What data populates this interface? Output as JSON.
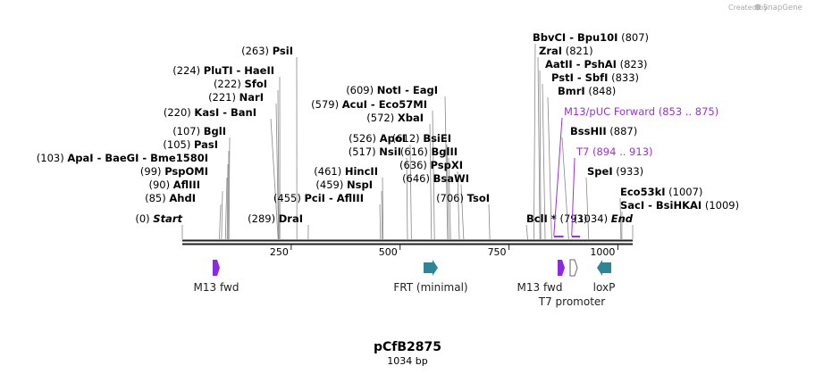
{
  "watermark": {
    "text": "Created by",
    "brand": "SnapGene"
  },
  "plasmid": {
    "name": "pCfB2875",
    "length_label": "1034 bp",
    "length_bp": 1034
  },
  "ruler": {
    "ticks": [
      250,
      500,
      750,
      1000
    ]
  },
  "colors": {
    "enzyme_text": "#000000",
    "site_text": "#9b30d9",
    "primer_purple": "#8a2be2",
    "feature_teal": "#2e8595",
    "backbone": "#222222"
  },
  "enzymes": [
    {
      "pos": "(0)",
      "bp": 0,
      "name": "Start",
      "italic": true
    },
    {
      "pos": "(85)",
      "bp": 85,
      "name": "AhdI"
    },
    {
      "pos": "(90)",
      "bp": 90,
      "name": "AflIII"
    },
    {
      "pos": "(99)",
      "bp": 99,
      "name": "PspOMI"
    },
    {
      "pos": "(103)",
      "bp": 103,
      "name": "ApaI",
      "name2": "BaeGI",
      "name3": "Bme1580I"
    },
    {
      "pos": "(105)",
      "bp": 105,
      "name": "PasI"
    },
    {
      "pos": "(107)",
      "bp": 107,
      "name": "BglI"
    },
    {
      "pos": "(220)",
      "bp": 220,
      "name": "KasI",
      "name2": "BanI"
    },
    {
      "pos": "(221)",
      "bp": 221,
      "name": "NarI"
    },
    {
      "pos": "(222)",
      "bp": 222,
      "name": "SfoI"
    },
    {
      "pos": "(224)",
      "bp": 224,
      "name": "PluTI",
      "name2": "HaeII"
    },
    {
      "pos": "(263)",
      "bp": 263,
      "name": "PsiI"
    },
    {
      "pos": "(289)",
      "bp": 289,
      "name": "DraI"
    },
    {
      "pos": "(455)",
      "bp": 455,
      "name": "PciI",
      "name2": "AflIII"
    },
    {
      "pos": "(459)",
      "bp": 459,
      "name": "NspI"
    },
    {
      "pos": "(461)",
      "bp": 461,
      "name": "HincII"
    },
    {
      "pos": "(517)",
      "bp": 517,
      "name": "NsiI"
    },
    {
      "pos": "(526)",
      "bp": 526,
      "name": "ApoI"
    },
    {
      "pos": "(572)",
      "bp": 572,
      "name": "XbaI"
    },
    {
      "pos": "(579)",
      "bp": 579,
      "name": "AcuI",
      "name2": "Eco57MI"
    },
    {
      "pos": "(609)",
      "bp": 609,
      "name": "NotI",
      "name2": "EagI"
    },
    {
      "pos": "(612)",
      "bp": 612,
      "name": "BsiEI"
    },
    {
      "pos": "(616)",
      "bp": 616,
      "name": "BglII"
    },
    {
      "pos": "(636)",
      "bp": 636,
      "name": "PspXI"
    },
    {
      "pos": "(646)",
      "bp": 646,
      "name": "BsaWI"
    },
    {
      "pos": "(706)",
      "bp": 706,
      "name": "TsoI"
    },
    {
      "pos": "(793)",
      "bp": 793,
      "name": "BclI",
      "marker": "*"
    },
    {
      "pos": "(807)",
      "bp": 807,
      "name": "BbvCI",
      "name2": "Bpu10I"
    },
    {
      "pos": "(821)",
      "bp": 821,
      "name": "ZraI"
    },
    {
      "pos": "(823)",
      "bp": 823,
      "name": "AatII",
      "name2": "PshAI"
    },
    {
      "pos": "(833)",
      "bp": 833,
      "name": "PstI",
      "name2": "SbfI"
    },
    {
      "pos": "(848)",
      "bp": 848,
      "name": "BmrI"
    },
    {
      "pos": "(887)",
      "bp": 887,
      "name": "BssHII"
    },
    {
      "pos": "(933)",
      "bp": 933,
      "name": "SpeI"
    },
    {
      "pos": "(1007)",
      "bp": 1007,
      "name": "Eco53kI"
    },
    {
      "pos": "(1009)",
      "bp": 1009,
      "name": "SacI",
      "name2": "BsiHKAI"
    },
    {
      "pos": "(1034)",
      "bp": 1034,
      "name": "End",
      "italic": true
    }
  ],
  "sites": [
    {
      "name": "M13/pUC Forward",
      "range": "(853 .. 875)",
      "start": 853,
      "end": 875
    },
    {
      "name": "T7",
      "range": "(894 .. 913)",
      "start": 894,
      "end": 913
    }
  ],
  "features": [
    {
      "label": "M13 fwd",
      "kind": "primer",
      "start": 80,
      "end": 97,
      "direction": "right"
    },
    {
      "label": "FRT (minimal)",
      "kind": "misc",
      "start": 560,
      "end": 594,
      "direction": "right"
    },
    {
      "label": "M13 fwd",
      "kind": "primer",
      "start": 866,
      "end": 883,
      "direction": "right"
    },
    {
      "label": "T7 promoter",
      "kind": "promoter",
      "start": 894,
      "end": 913,
      "direction": "right"
    },
    {
      "label": "loxP",
      "kind": "misc",
      "start": 952,
      "end": 986,
      "direction": "left"
    }
  ]
}
